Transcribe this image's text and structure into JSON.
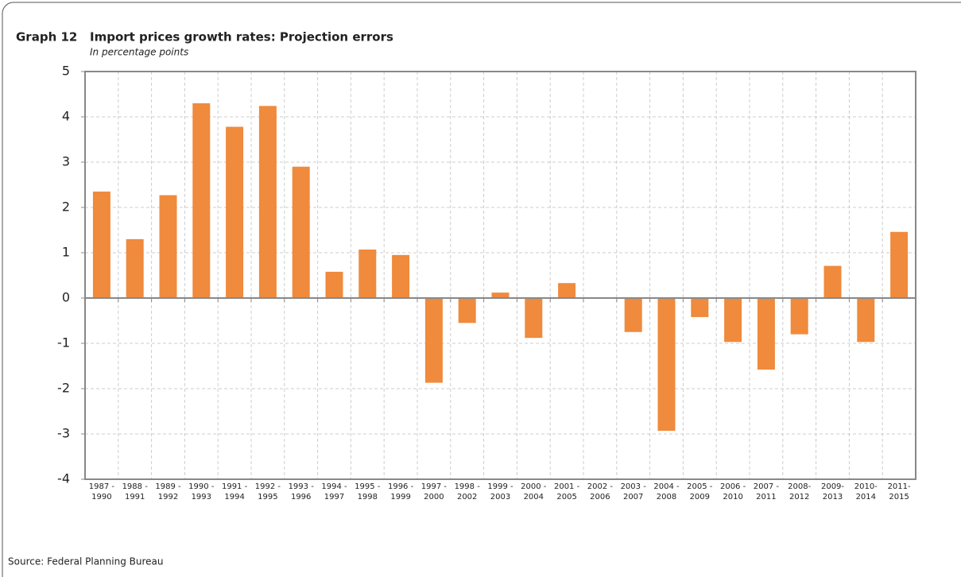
{
  "chart_data": {
    "type": "bar",
    "label": "Graph 12",
    "title": "Import prices growth rates: Projection errors",
    "subtitle": "In percentage points",
    "source": "Source: Federal Planning Bureau",
    "categories": [
      "1987 - 1990",
      "1988 - 1991",
      "1989 - 1992",
      "1990 - 1993",
      "1991 - 1994",
      "1992 - 1995",
      "1993 - 1996",
      "1994 - 1997",
      "1995 - 1998",
      "1996 - 1999",
      "1997 - 2000",
      "1998 - 2002",
      "1999 - 2003",
      "2000 - 2004",
      "2001 - 2005",
      "2002 - 2006",
      "2003 - 2007",
      "2004 - 2008",
      "2005 - 2009",
      "2006 - 2010",
      "2007 - 2011",
      "2008- 2012",
      "2009- 2013",
      "2010- 2014",
      "2011- 2015"
    ],
    "values": [
      2.35,
      1.3,
      2.27,
      4.3,
      3.78,
      4.24,
      2.9,
      0.58,
      1.07,
      0.95,
      -1.87,
      -0.55,
      0.12,
      -0.88,
      0.33,
      0,
      -0.75,
      -2.93,
      -0.42,
      -0.97,
      -1.58,
      -0.8,
      0.71,
      -0.97,
      1.46
    ],
    "color": "#f08a3c",
    "ylim": [
      -4,
      5
    ],
    "yticks": [
      -4,
      -3,
      -2,
      -1,
      0,
      1,
      2,
      3,
      4,
      5
    ],
    "grid": true
  }
}
